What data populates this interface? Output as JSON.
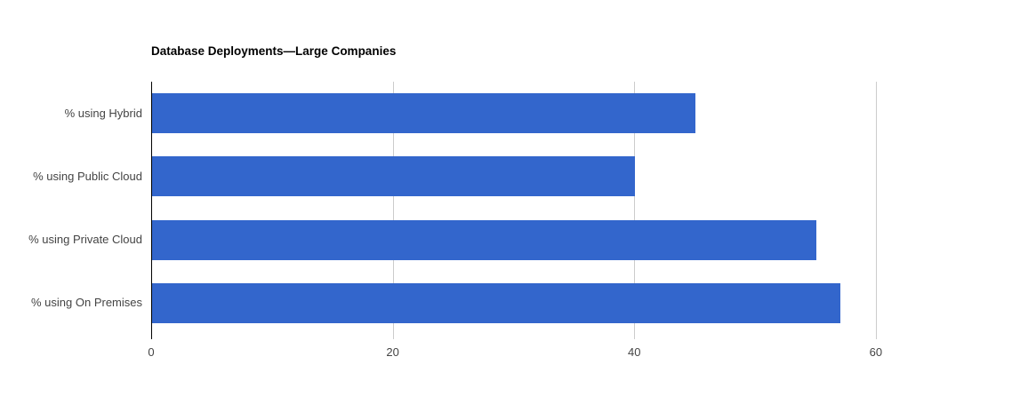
{
  "chart_data": {
    "type": "bar",
    "orientation": "horizontal",
    "title": "Database Deployments—Large Companies",
    "categories": [
      "% using Hybrid",
      "% using Public Cloud",
      "% using Private Cloud",
      "% using On Premises"
    ],
    "values": [
      45,
      40,
      55,
      57
    ],
    "xlabel": "",
    "ylabel": "",
    "xlim": [
      0,
      64.5
    ],
    "xticks": [
      0,
      20,
      40,
      60
    ],
    "grid": "vertical-only",
    "legend": "none",
    "colors": {
      "bar": "#3366cc",
      "gridline": "#cccccc",
      "baseline": "#000000",
      "axis_text": "#444444",
      "title_text": "#000000",
      "background": "#ffffff"
    }
  }
}
